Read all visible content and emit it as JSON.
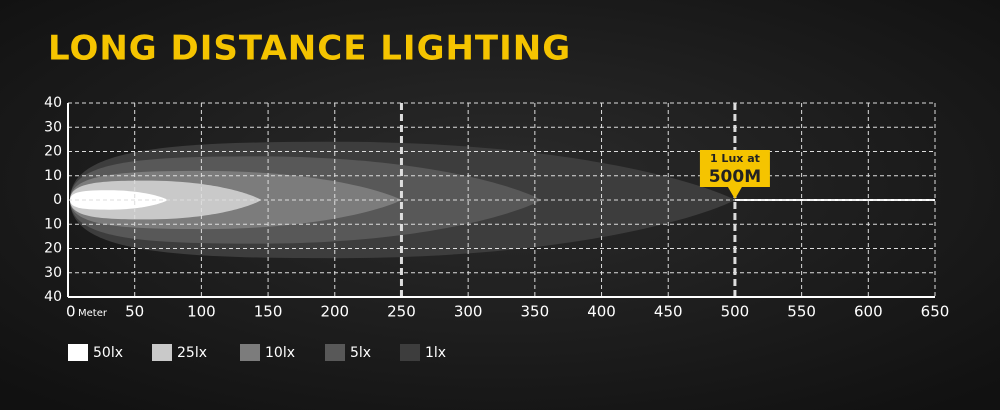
{
  "chart_data": {
    "type": "beam",
    "title": "LONG DISTANCE LIGHTING",
    "x_unit": "Meter",
    "xlim": [
      0,
      650
    ],
    "xticks": [
      0,
      50,
      100,
      150,
      200,
      250,
      300,
      350,
      400,
      450,
      500,
      550,
      600,
      650
    ],
    "ylim": [
      -40,
      40
    ],
    "yticks": [
      40,
      30,
      20,
      10,
      0,
      {
        "value": -10,
        "label": "10"
      },
      {
        "value": -20,
        "label": "20"
      },
      {
        "value": -30,
        "label": "30"
      },
      {
        "value": -40,
        "label": "40"
      }
    ],
    "grid": true,
    "series": [
      {
        "name": "50lx",
        "color": "#ffffff",
        "reach": 75,
        "half_width": 4
      },
      {
        "name": "25lx",
        "color": "#c9c9c9",
        "reach": 145,
        "half_width": 8
      },
      {
        "name": "10lx",
        "color": "#7c7c7c",
        "reach": 250,
        "half_width": 12
      },
      {
        "name": "5lx",
        "color": "#585858",
        "reach": 355,
        "half_width": 18
      },
      {
        "name": "1lx",
        "color": "#3d3d3d",
        "reach": 500,
        "half_width": 24
      }
    ],
    "annotation": {
      "text": "1 Lux at",
      "value_label": "500M",
      "color": "#f5c400"
    }
  }
}
